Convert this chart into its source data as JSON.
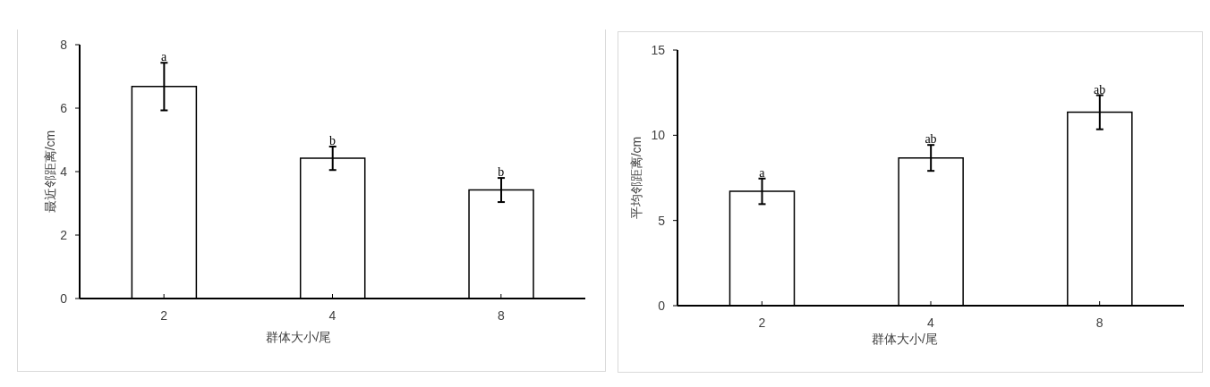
{
  "chart_data": [
    {
      "type": "bar",
      "categories": [
        "2",
        "4",
        "8"
      ],
      "values": [
        6.68,
        4.42,
        3.42
      ],
      "errors": [
        0.75,
        0.37,
        0.38
      ],
      "color": "#ffffff",
      "xlabel": "群体大小/尾",
      "ylabel": "最近邻距离/cm",
      "ylim": [
        0,
        8
      ],
      "yticks": [
        0,
        2,
        4,
        6,
        8
      ],
      "annotations": [
        {
          "text": "a",
          "x": "2",
          "y": 7.43
        },
        {
          "text": "b",
          "x": "4",
          "y": 4.79
        },
        {
          "text": "b",
          "x": "8",
          "y": 3.8
        }
      ]
    },
    {
      "type": "bar",
      "categories": [
        "2",
        "4",
        "8"
      ],
      "values": [
        6.71,
        8.67,
        11.35
      ],
      "errors": [
        0.75,
        0.76,
        1.0
      ],
      "color": "#ffffff",
      "xlabel": "群体大小/尾",
      "ylabel": "平均邻距离/cm",
      "ylim": [
        0,
        15
      ],
      "yticks": [
        0,
        5,
        10,
        15
      ],
      "annotations": [
        {
          "text": "a",
          "x": "2",
          "y": 7.46
        },
        {
          "text": "ab",
          "x": "4",
          "y": 9.43
        },
        {
          "text": "ab",
          "x": "8",
          "y": 12.35
        }
      ]
    }
  ]
}
